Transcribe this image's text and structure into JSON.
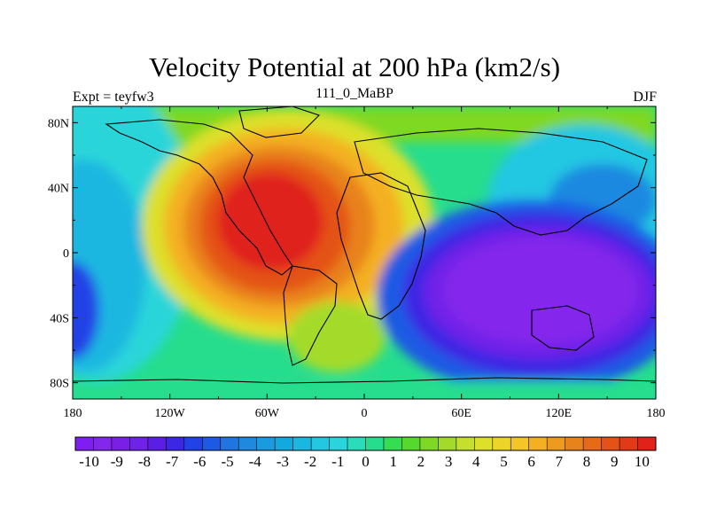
{
  "title": "Velocity Potential at 200 hPa (km2/s)",
  "left_label": "Expt = teyfw3",
  "center_label": "111_0_MaBP",
  "right_label": "DJF",
  "lat_ticks": [
    {
      "value": 80,
      "label": "80N"
    },
    {
      "value": 40,
      "label": "40N"
    },
    {
      "value": 0,
      "label": "0"
    },
    {
      "value": -40,
      "label": "40S"
    },
    {
      "value": -80,
      "label": "80S"
    }
  ],
  "lon_ticks": [
    {
      "value": -180,
      "label": "180"
    },
    {
      "value": -120,
      "label": "120W"
    },
    {
      "value": -60,
      "label": "60W"
    },
    {
      "value": 0,
      "label": "0"
    },
    {
      "value": 60,
      "label": "60E"
    },
    {
      "value": 120,
      "label": "120E"
    },
    {
      "value": 180,
      "label": "180"
    }
  ],
  "colorbar": {
    "tick_labels": [
      "-10",
      "-9",
      "-8",
      "-7",
      "-6",
      "-5",
      "-4",
      "-3",
      "-2",
      "-1",
      "0",
      "1",
      "2",
      "3",
      "4",
      "5",
      "6",
      "7",
      "8",
      "9",
      "10"
    ],
    "min": -10.5,
    "max": 10.5,
    "colors": [
      "#7f1ef2",
      "#8427ec",
      "#7a1fe6",
      "#6f22e8",
      "#5a1ee4",
      "#3c28e4",
      "#2142e6",
      "#1d5ae4",
      "#2175e0",
      "#1f89e0",
      "#1a9bdf",
      "#12a9de",
      "#1ab7e0",
      "#24c7e2",
      "#29d5da",
      "#29ddbb",
      "#26dd8e",
      "#35dd52",
      "#56d82e",
      "#7fd824",
      "#a4db2a",
      "#c5e02c",
      "#dde02a",
      "#ecd528",
      "#f4c526",
      "#f4b020",
      "#ee9a1e",
      "#e8821a",
      "#e66a18",
      "#e45218",
      "#e23a16",
      "#e0221a"
    ]
  },
  "map_data": {
    "type": "filled_contour",
    "variable": "Velocity Potential at 200 hPa",
    "units": "km2/s",
    "lat_range": [
      -90,
      90
    ],
    "lon_range": [
      -180,
      180
    ],
    "centers": [
      {
        "lon": -65,
        "lat": 20,
        "value": 10
      },
      {
        "lon": 100,
        "lat": -15,
        "value": -10
      },
      {
        "lon": -180,
        "lat": -25,
        "value": -5
      },
      {
        "lon": 140,
        "lat": 35,
        "value": -3
      }
    ]
  }
}
